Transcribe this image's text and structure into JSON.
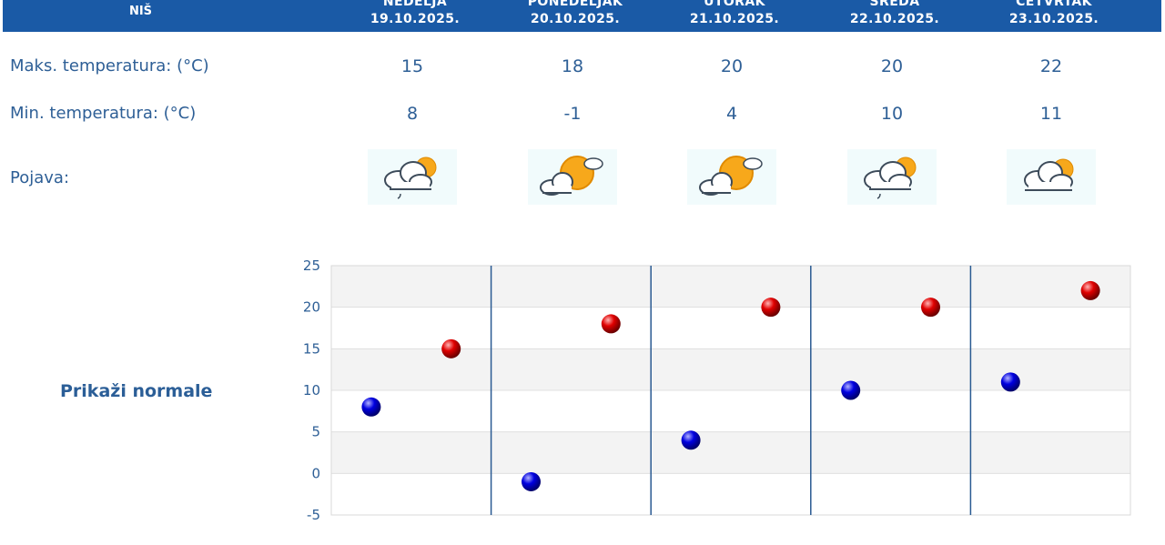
{
  "header": {
    "city": "NIŠ",
    "days": [
      {
        "name": "NEDELJA",
        "date": "19.10.2025."
      },
      {
        "name": "PONEDELJAK",
        "date": "20.10.2025."
      },
      {
        "name": "UTORAK",
        "date": "21.10.2025."
      },
      {
        "name": "SREDA",
        "date": "22.10.2025."
      },
      {
        "name": "ČETVRTAK",
        "date": "23.10.2025."
      }
    ]
  },
  "rows": {
    "max_label": "Maks. temperatura: (°C)",
    "min_label": "Min. temperatura: (°C)",
    "phenomenon_label": "Pojava:",
    "max_values": [
      "15",
      "18",
      "20",
      "20",
      "22"
    ],
    "min_values": [
      "8",
      "-1",
      "4",
      "10",
      "11"
    ],
    "icons": [
      "sun-cloud-rain-icon",
      "sun-cloud-icon",
      "sun-cloud-icon",
      "sun-cloud-rain-icon",
      "sun-cloud-icon"
    ]
  },
  "normals_link": "Prikaži normale",
  "colors": {
    "header_bg": "#1a5aa6",
    "text": "#2e5f96",
    "max_marker": "#cc0000",
    "min_marker": "#0000cc"
  },
  "chart_data": {
    "type": "scatter",
    "categories": [
      "19.10.2025.",
      "20.10.2025.",
      "21.10.2025.",
      "22.10.2025.",
      "23.10.2025."
    ],
    "series": [
      {
        "values": [
          8,
          -1,
          4,
          10,
          11
        ]
      },
      {
        "values": [
          15,
          18,
          20,
          20,
          22
        ]
      }
    ],
    "ylim": [
      -5,
      25
    ],
    "yticks": [
      "25",
      "20",
      "15",
      "10",
      "5",
      "0",
      "-5"
    ],
    "grid": true,
    "title": "",
    "xlabel": "",
    "ylabel": ""
  }
}
